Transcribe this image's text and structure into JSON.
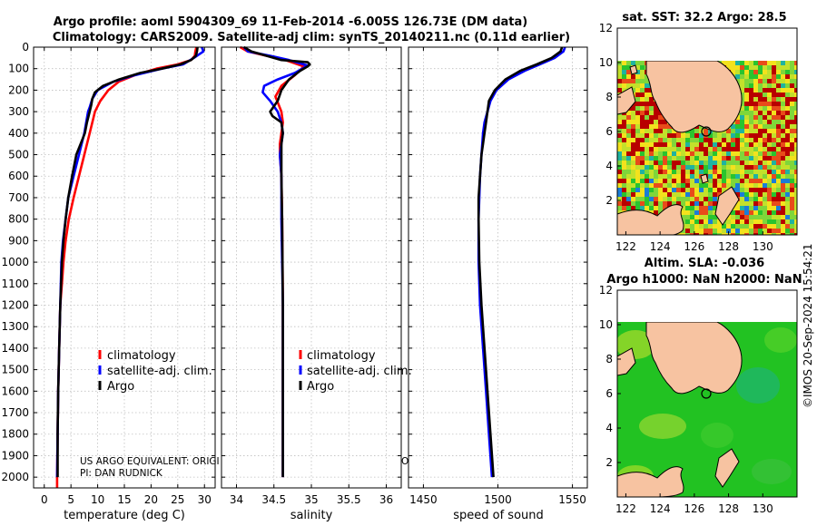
{
  "titles": {
    "line1": "Argo profile: aoml 5904309_69 11-Feb-2014 -6.005S 126.73E (DM data)",
    "line2": "Climatology: CARS2009. Satellite-adj clim: synTS_20140211.nc (0.11d earlier)"
  },
  "footer_note_1": "US ARGO EQUIVALENT: ORIGI",
  "footer_note_2": "PI: DAN RUDNICK",
  "footer_note_stray": "O",
  "watermark": "©IMOS 20-Sep-2024 15:54:21",
  "colors": {
    "climatology": "#ff0000",
    "satellite": "#0000ff",
    "argo": "#000000",
    "land": "#f7c3a1"
  },
  "legend": {
    "climatology": "climatology",
    "satellite": "satellite-adj. clim.",
    "argo": "Argo"
  },
  "chart_data": [
    {
      "type": "line",
      "id": "temperature",
      "xlabel": "temperature (deg C)",
      "xlim": [
        -2,
        32
      ],
      "ylim": [
        2050,
        0
      ],
      "xticks": [
        0,
        5,
        10,
        15,
        20,
        25,
        30
      ],
      "yticks": [
        0,
        100,
        200,
        300,
        400,
        500,
        600,
        700,
        800,
        900,
        1000,
        1100,
        1200,
        1300,
        1400,
        1500,
        1600,
        1700,
        1800,
        1900,
        2000
      ],
      "grid": true,
      "series": [
        {
          "name": "climatology",
          "color": "#ff0000",
          "x": [
            28.5,
            28.3,
            28.2,
            27.5,
            25,
            21,
            17,
            14,
            12,
            10.5,
            9.5,
            9,
            8.5,
            7.5,
            6.5,
            5.5,
            4.6,
            4,
            3.6,
            3.3,
            3,
            2.8,
            2.6,
            2.5,
            2.4,
            2.4
          ],
          "y": [
            0,
            20,
            40,
            60,
            80,
            100,
            130,
            160,
            200,
            250,
            300,
            350,
            400,
            500,
            600,
            700,
            800,
            900,
            1000,
            1100,
            1200,
            1400,
            1600,
            1800,
            2000,
            2050
          ]
        },
        {
          "name": "satellite-adj. clim.",
          "color": "#0000ff",
          "x": [
            29.5,
            29.8,
            28,
            26,
            22,
            17,
            13,
            10,
            9,
            8.5,
            8.2,
            7.5,
            6.5,
            5.5,
            4.5,
            4,
            3.5,
            3.2,
            3,
            2.8,
            2.6,
            2.5,
            2.4
          ],
          "y": [
            0,
            20,
            50,
            80,
            100,
            130,
            160,
            200,
            240,
            280,
            300,
            400,
            500,
            600,
            700,
            800,
            900,
            1000,
            1200,
            1400,
            1600,
            1800,
            2000
          ]
        },
        {
          "name": "Argo",
          "color": "#000000",
          "x": [
            28.7,
            28.6,
            28.4,
            27.5,
            25.5,
            22,
            18,
            14,
            11,
            9.5,
            9,
            8.8,
            8.5,
            8,
            7.6,
            6.8,
            6,
            5.2,
            4.5,
            4,
            3.6,
            3.3,
            3,
            2.8,
            2.6,
            2.5,
            2.5
          ],
          "y": [
            0,
            20,
            40,
            60,
            80,
            100,
            120,
            150,
            180,
            210,
            240,
            270,
            300,
            350,
            400,
            450,
            500,
            600,
            700,
            800,
            900,
            1000,
            1200,
            1400,
            1600,
            1800,
            2000
          ]
        }
      ]
    },
    {
      "type": "line",
      "id": "salinity",
      "xlabel": "salinity",
      "xlim": [
        33.8,
        36.2
      ],
      "ylim": [
        2050,
        0
      ],
      "xticks": [
        34,
        34.5,
        35,
        35.5,
        36
      ],
      "xticklabels": [
        "34",
        "34.5",
        "35",
        "35.5",
        "36"
      ],
      "grid": true,
      "series": [
        {
          "name": "climatology",
          "color": "#ff0000",
          "x": [
            34.05,
            34.15,
            34.4,
            34.65,
            34.9,
            34.78,
            34.6,
            34.52,
            34.6,
            34.62,
            34.6,
            34.58,
            34.58,
            34.6,
            34.61,
            34.62,
            34.62,
            34.62
          ],
          "y": [
            0,
            20,
            40,
            60,
            90,
            130,
            180,
            230,
            300,
            350,
            400,
            450,
            500,
            600,
            800,
            1200,
            1600,
            2000
          ]
        },
        {
          "name": "satellite-adj. clim.",
          "color": "#0000ff",
          "x": [
            34.1,
            34.15,
            34.45,
            34.7,
            34.95,
            34.78,
            34.55,
            34.37,
            34.35,
            34.45,
            34.55,
            34.6,
            34.62,
            34.6,
            34.58,
            34.6,
            34.6,
            34.62,
            34.62
          ],
          "y": [
            0,
            20,
            40,
            60,
            85,
            120,
            150,
            180,
            210,
            250,
            300,
            350,
            400,
            450,
            500,
            600,
            800,
            1200,
            2000
          ]
        },
        {
          "name": "Argo",
          "color": "#000000",
          "x": [
            34.1,
            34.2,
            34.4,
            34.6,
            34.95,
            34.98,
            34.95,
            34.85,
            34.7,
            34.6,
            34.55,
            34.45,
            34.48,
            34.6,
            34.62,
            34.6,
            34.6,
            34.6,
            34.61,
            34.62,
            34.62
          ],
          "y": [
            0,
            20,
            40,
            60,
            70,
            80,
            90,
            110,
            150,
            200,
            250,
            300,
            320,
            350,
            400,
            450,
            500,
            600,
            800,
            1200,
            2000
          ]
        }
      ]
    },
    {
      "type": "line",
      "id": "sound_speed",
      "xlabel": "speed of sound",
      "xlim": [
        1440,
        1560
      ],
      "ylim": [
        2050,
        0
      ],
      "xticks": [
        1450,
        1500,
        1550
      ],
      "grid": true,
      "series": [
        {
          "name": "satellite-adj. clim.",
          "color": "#0000ff",
          "x": [
            1545,
            1544,
            1538,
            1528,
            1518,
            1507,
            1499,
            1495,
            1493,
            1491,
            1490,
            1489,
            1488,
            1487.5,
            1487,
            1487,
            1488,
            1490,
            1492,
            1494,
            1496
          ],
          "y": [
            0,
            20,
            50,
            80,
            110,
            150,
            200,
            250,
            300,
            350,
            400,
            500,
            600,
            700,
            800,
            1000,
            1200,
            1400,
            1600,
            1800,
            2000
          ]
        },
        {
          "name": "Argo",
          "color": "#000000",
          "x": [
            1543,
            1542,
            1536,
            1526,
            1515,
            1505,
            1498,
            1494,
            1493,
            1492,
            1491,
            1490,
            1489,
            1488,
            1487,
            1487,
            1487.5,
            1489,
            1491,
            1493,
            1495,
            1497
          ],
          "y": [
            0,
            20,
            50,
            80,
            110,
            150,
            200,
            250,
            300,
            350,
            400,
            450,
            500,
            600,
            700,
            800,
            1000,
            1200,
            1400,
            1600,
            1800,
            2000
          ]
        }
      ]
    },
    {
      "type": "heatmap",
      "id": "sst_map",
      "title": "sat. SST: 32.2 Argo: 28.5",
      "xlim": [
        121.5,
        132
      ],
      "ylim": [
        0,
        12
      ],
      "xticks": [
        122,
        124,
        126,
        128,
        130
      ],
      "yticks": [
        2,
        4,
        6,
        8,
        10,
        12
      ],
      "data_extent": {
        "x": [
          121.5,
          132
        ],
        "y": [
          0.3,
          10
        ]
      },
      "argo_position": {
        "x": 126.73,
        "y": 6
      }
    },
    {
      "type": "heatmap",
      "id": "sla_map",
      "title": "Altim. SLA: -0.036",
      "subtitle": "Argo h1000: NaN h2000: NaN",
      "xlim": [
        121.5,
        132
      ],
      "ylim": [
        0,
        12
      ],
      "xticks": [
        122,
        124,
        126,
        128,
        130
      ],
      "yticks": [
        2,
        4,
        6,
        8,
        10,
        12
      ],
      "data_extent": {
        "x": [
          121.5,
          132
        ],
        "y": [
          0.3,
          10
        ]
      },
      "argo_position": {
        "x": 126.73,
        "y": 6
      }
    }
  ]
}
